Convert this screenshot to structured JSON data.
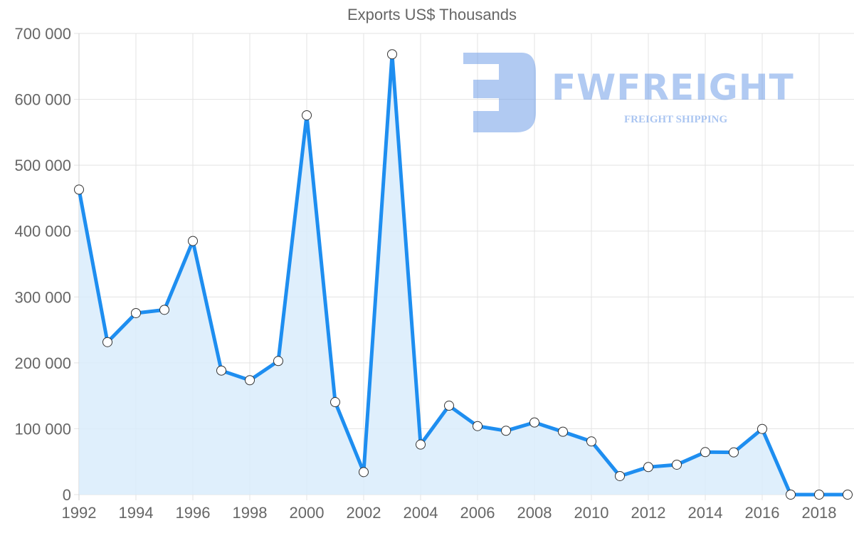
{
  "chart_data": {
    "type": "area",
    "title": "Exports US$ Thousands",
    "xlabel": "",
    "ylabel": "",
    "x": [
      1992,
      1993,
      1994,
      1995,
      1996,
      1997,
      1998,
      1999,
      2000,
      2001,
      2002,
      2003,
      2004,
      2005,
      2006,
      2007,
      2008,
      2009,
      2010,
      2011,
      2012,
      2013,
      2014,
      2015,
      2016,
      2017,
      2018,
      2019
    ],
    "series": [
      {
        "name": "Exports US$ Thousands",
        "values": [
          463000,
          231500,
          275500,
          280500,
          385000,
          188300,
          173600,
          202800,
          575800,
          140400,
          34200,
          668400,
          76000,
          135000,
          104000,
          96900,
          109500,
          95400,
          80700,
          28100,
          41800,
          45400,
          64500,
          64100,
          99700,
          0,
          0,
          0
        ]
      }
    ],
    "x_tick_labels": [
      "1992",
      "1994",
      "1996",
      "1998",
      "2000",
      "2002",
      "2004",
      "2006",
      "2008",
      "2010",
      "2012",
      "2014",
      "2016",
      "2018"
    ],
    "y_tick_labels": [
      "0",
      "100 000",
      "200 000",
      "300 000",
      "400 000",
      "500 000",
      "600 000",
      "700 000"
    ],
    "ylim": [
      0,
      700000
    ],
    "grid": true,
    "legend": "none",
    "colors": {
      "line": "#1e8ef0",
      "fill": "#d9ecfc",
      "grid": "#e3e3e3",
      "tick_text": "#666666",
      "point_fill": "#ffffff",
      "point_stroke": "#333333"
    }
  },
  "watermark": {
    "brand": "FWFREIGHT",
    "tagline": "FREIGHT SHIPPING",
    "icon": "fw-logo-icon"
  }
}
